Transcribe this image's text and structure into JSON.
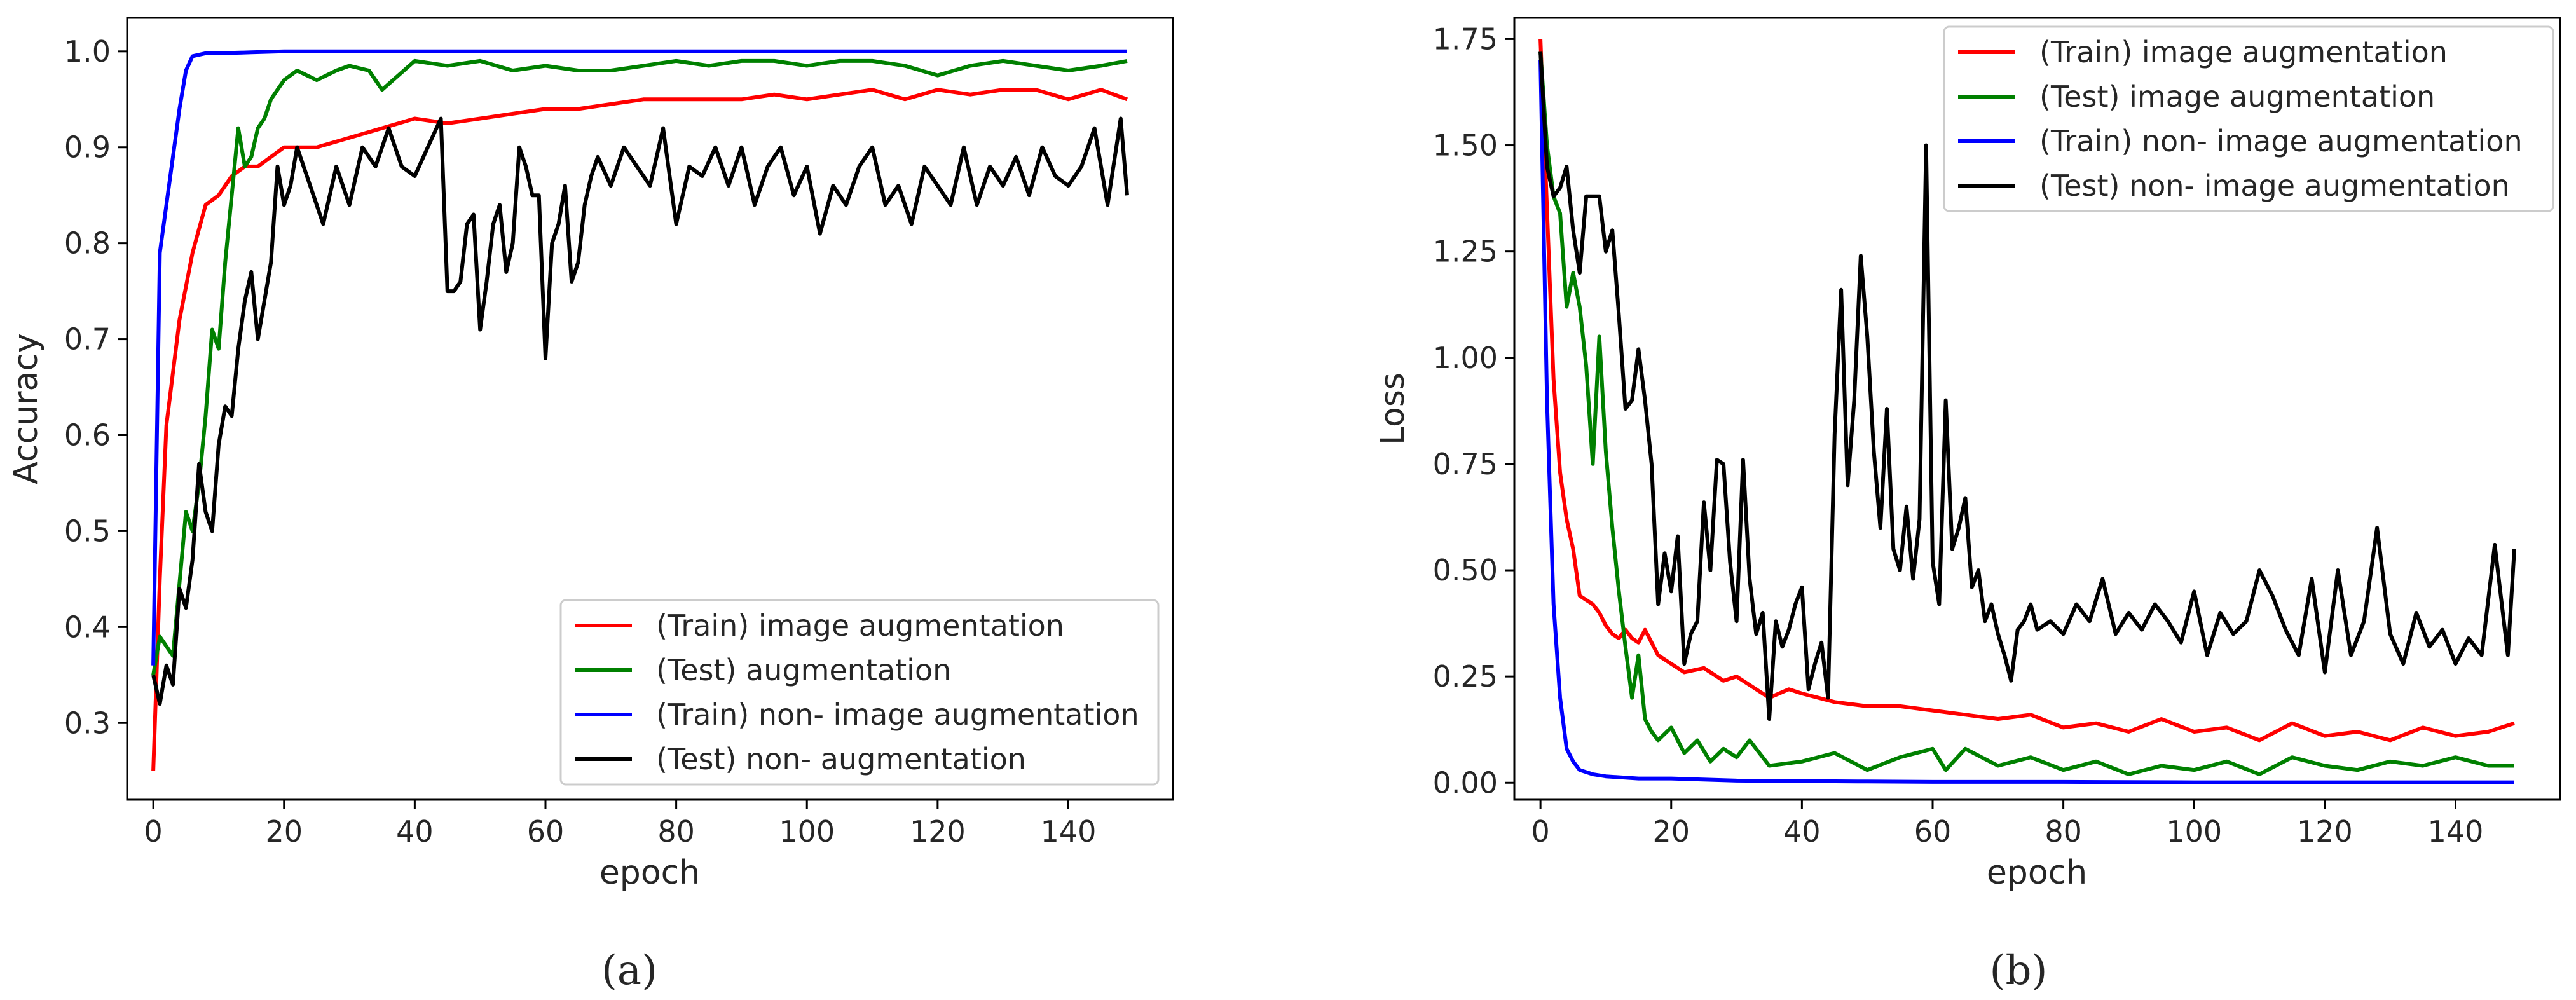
{
  "charts": [
    {
      "panel": "(a)",
      "xlabel": "epoch",
      "ylabel": "Accuracy",
      "legend_position": "lower-right",
      "legend": [
        "(Train) image augmentation",
        "(Test) augmentation",
        "(Train) non- image augmentation",
        "(Test) non- augmentation"
      ],
      "xticks": [
        "0",
        "20",
        "40",
        "60",
        "80",
        "100",
        "120",
        "140"
      ],
      "yticks": [
        "0.3",
        "0.4",
        "0.5",
        "0.6",
        "0.7",
        "0.8",
        "0.9",
        "1.0"
      ]
    },
    {
      "panel": "(b)",
      "xlabel": "epoch",
      "ylabel": "Loss",
      "legend_position": "upper-right",
      "legend": [
        "(Train) image augmentation",
        "(Test) image augmentation",
        "(Train) non- image augmentation",
        "(Test) non- image augmentation"
      ],
      "xticks": [
        "0",
        "20",
        "40",
        "60",
        "80",
        "100",
        "120",
        "140"
      ],
      "yticks": [
        "0.00",
        "0.25",
        "0.50",
        "0.75",
        "1.00",
        "1.25",
        "1.50",
        "1.75"
      ]
    }
  ],
  "chart_data": [
    {
      "type": "line",
      "xlabel": "epoch",
      "ylabel": "Accuracy",
      "xlim": [
        -4,
        156
      ],
      "ylim": [
        0.22,
        1.035
      ],
      "grid": false,
      "legend_position": "lower-right",
      "colors": [
        "#ff0000",
        "#008000",
        "#0000ff",
        "#000000"
      ],
      "series": [
        {
          "name": "(Train) image augmentation",
          "x": [
            0,
            1,
            2,
            4,
            6,
            8,
            10,
            12,
            14,
            16,
            18,
            20,
            25,
            30,
            35,
            40,
            45,
            50,
            55,
            60,
            65,
            70,
            75,
            80,
            85,
            90,
            95,
            100,
            105,
            110,
            115,
            120,
            125,
            130,
            135,
            140,
            145,
            149
          ],
          "y": [
            0.25,
            0.45,
            0.61,
            0.72,
            0.79,
            0.84,
            0.85,
            0.87,
            0.88,
            0.88,
            0.89,
            0.9,
            0.9,
            0.91,
            0.92,
            0.93,
            0.925,
            0.93,
            0.935,
            0.94,
            0.94,
            0.945,
            0.95,
            0.95,
            0.95,
            0.95,
            0.955,
            0.95,
            0.955,
            0.96,
            0.95,
            0.96,
            0.955,
            0.96,
            0.96,
            0.95,
            0.96,
            0.95
          ]
        },
        {
          "name": "(Test) augmentation",
          "x": [
            0,
            1,
            3,
            5,
            6,
            7,
            8,
            9,
            10,
            11,
            12,
            13,
            14,
            15,
            16,
            17,
            18,
            19,
            20,
            22,
            25,
            28,
            30,
            33,
            35,
            40,
            45,
            50,
            55,
            60,
            65,
            70,
            75,
            80,
            85,
            90,
            95,
            100,
            105,
            110,
            115,
            120,
            125,
            130,
            135,
            140,
            145,
            149
          ],
          "y": [
            0.35,
            0.39,
            0.37,
            0.52,
            0.5,
            0.55,
            0.62,
            0.71,
            0.69,
            0.78,
            0.85,
            0.92,
            0.88,
            0.89,
            0.92,
            0.93,
            0.95,
            0.96,
            0.97,
            0.98,
            0.97,
            0.98,
            0.985,
            0.98,
            0.96,
            0.99,
            0.985,
            0.99,
            0.98,
            0.985,
            0.98,
            0.98,
            0.985,
            0.99,
            0.985,
            0.99,
            0.99,
            0.985,
            0.99,
            0.99,
            0.985,
            0.975,
            0.985,
            0.99,
            0.985,
            0.98,
            0.985,
            0.99
          ]
        },
        {
          "name": "(Train) non- image augmentation",
          "x": [
            0,
            1,
            2,
            3,
            4,
            5,
            6,
            8,
            10,
            15,
            20,
            30,
            40,
            60,
            80,
            100,
            120,
            149
          ],
          "y": [
            0.36,
            0.79,
            0.84,
            0.89,
            0.94,
            0.98,
            0.995,
            0.998,
            0.998,
            0.999,
            1.0,
            1.0,
            1.0,
            1.0,
            1.0,
            1.0,
            1.0,
            1.0
          ]
        },
        {
          "name": "(Test) non- augmentation",
          "x": [
            0,
            1,
            2,
            3,
            4,
            5,
            6,
            7,
            8,
            9,
            10,
            11,
            12,
            13,
            14,
            15,
            16,
            17,
            18,
            19,
            20,
            21,
            22,
            24,
            26,
            28,
            30,
            32,
            34,
            36,
            38,
            40,
            42,
            44,
            45,
            46,
            47,
            48,
            49,
            50,
            51,
            52,
            53,
            54,
            55,
            56,
            57,
            58,
            59,
            60,
            61,
            62,
            63,
            64,
            65,
            66,
            67,
            68,
            70,
            72,
            74,
            76,
            78,
            80,
            82,
            84,
            86,
            88,
            90,
            92,
            94,
            96,
            98,
            100,
            102,
            104,
            106,
            108,
            110,
            112,
            114,
            116,
            118,
            120,
            122,
            124,
            126,
            128,
            130,
            132,
            134,
            136,
            138,
            140,
            142,
            144,
            146,
            148,
            149
          ],
          "y": [
            0.35,
            0.32,
            0.36,
            0.34,
            0.44,
            0.42,
            0.47,
            0.57,
            0.52,
            0.5,
            0.59,
            0.63,
            0.62,
            0.69,
            0.74,
            0.77,
            0.7,
            0.74,
            0.78,
            0.88,
            0.84,
            0.86,
            0.9,
            0.86,
            0.82,
            0.88,
            0.84,
            0.9,
            0.88,
            0.92,
            0.88,
            0.87,
            0.9,
            0.93,
            0.75,
            0.75,
            0.76,
            0.82,
            0.83,
            0.71,
            0.76,
            0.82,
            0.84,
            0.77,
            0.8,
            0.9,
            0.88,
            0.85,
            0.85,
            0.68,
            0.8,
            0.82,
            0.86,
            0.76,
            0.78,
            0.84,
            0.87,
            0.89,
            0.86,
            0.9,
            0.88,
            0.86,
            0.92,
            0.82,
            0.88,
            0.87,
            0.9,
            0.86,
            0.9,
            0.84,
            0.88,
            0.9,
            0.85,
            0.88,
            0.81,
            0.86,
            0.84,
            0.88,
            0.9,
            0.84,
            0.86,
            0.82,
            0.88,
            0.86,
            0.84,
            0.9,
            0.84,
            0.88,
            0.86,
            0.89,
            0.85,
            0.9,
            0.87,
            0.86,
            0.88,
            0.92,
            0.84,
            0.93,
            0.85
          ]
        }
      ]
    },
    {
      "type": "line",
      "xlabel": "epoch",
      "ylabel": "Loss",
      "xlim": [
        -4,
        156
      ],
      "ylim": [
        -0.04,
        1.8
      ],
      "grid": false,
      "legend_position": "upper-right",
      "colors": [
        "#ff0000",
        "#008000",
        "#0000ff",
        "#000000"
      ],
      "series": [
        {
          "name": "(Train) image augmentation",
          "x": [
            0,
            1,
            2,
            3,
            4,
            5,
            6,
            7,
            8,
            9,
            10,
            11,
            12,
            13,
            14,
            15,
            16,
            18,
            20,
            22,
            25,
            28,
            30,
            33,
            35,
            38,
            40,
            45,
            50,
            55,
            60,
            65,
            70,
            75,
            80,
            85,
            90,
            95,
            100,
            105,
            110,
            115,
            120,
            125,
            130,
            135,
            140,
            145,
            149
          ],
          "y": [
            1.75,
            1.35,
            0.95,
            0.73,
            0.62,
            0.55,
            0.44,
            0.43,
            0.42,
            0.4,
            0.37,
            0.35,
            0.34,
            0.36,
            0.34,
            0.33,
            0.36,
            0.3,
            0.28,
            0.26,
            0.27,
            0.24,
            0.25,
            0.22,
            0.2,
            0.22,
            0.21,
            0.19,
            0.18,
            0.18,
            0.17,
            0.16,
            0.15,
            0.16,
            0.13,
            0.14,
            0.12,
            0.15,
            0.12,
            0.13,
            0.1,
            0.14,
            0.11,
            0.12,
            0.1,
            0.13,
            0.11,
            0.12,
            0.14
          ]
        },
        {
          "name": "(Test) image augmentation",
          "x": [
            0,
            1,
            2,
            3,
            4,
            5,
            6,
            7,
            8,
            9,
            10,
            11,
            12,
            13,
            14,
            15,
            16,
            17,
            18,
            20,
            22,
            24,
            26,
            28,
            30,
            32,
            35,
            40,
            45,
            50,
            55,
            60,
            62,
            65,
            70,
            75,
            80,
            85,
            90,
            95,
            100,
            105,
            110,
            115,
            120,
            125,
            130,
            135,
            140,
            145,
            149
          ],
          "y": [
            1.72,
            1.5,
            1.38,
            1.34,
            1.12,
            1.2,
            1.12,
            0.98,
            0.75,
            1.05,
            0.78,
            0.6,
            0.45,
            0.32,
            0.2,
            0.3,
            0.15,
            0.12,
            0.1,
            0.13,
            0.07,
            0.1,
            0.05,
            0.08,
            0.06,
            0.1,
            0.04,
            0.05,
            0.07,
            0.03,
            0.06,
            0.08,
            0.03,
            0.08,
            0.04,
            0.06,
            0.03,
            0.05,
            0.02,
            0.04,
            0.03,
            0.05,
            0.02,
            0.06,
            0.04,
            0.03,
            0.05,
            0.04,
            0.06,
            0.04,
            0.04
          ]
        },
        {
          "name": "(Train) non- image augmentation",
          "x": [
            0,
            1,
            2,
            3,
            4,
            5,
            6,
            8,
            10,
            15,
            20,
            30,
            40,
            50,
            60,
            80,
            100,
            120,
            149
          ],
          "y": [
            1.7,
            0.9,
            0.42,
            0.2,
            0.08,
            0.05,
            0.03,
            0.02,
            0.015,
            0.01,
            0.01,
            0.005,
            0.004,
            0.003,
            0.002,
            0.002,
            0.001,
            0.001,
            0.001
          ]
        },
        {
          "name": "(Test) non- image augmentation",
          "x": [
            0,
            1,
            2,
            3,
            4,
            5,
            6,
            7,
            8,
            9,
            10,
            11,
            12,
            13,
            14,
            15,
            16,
            17,
            18,
            19,
            20,
            21,
            22,
            23,
            24,
            25,
            26,
            27,
            28,
            29,
            30,
            31,
            32,
            33,
            34,
            35,
            36,
            37,
            38,
            39,
            40,
            41,
            42,
            43,
            44,
            45,
            46,
            47,
            48,
            49,
            50,
            51,
            52,
            53,
            54,
            55,
            56,
            57,
            58,
            59,
            60,
            61,
            62,
            63,
            64,
            65,
            66,
            67,
            68,
            69,
            70,
            71,
            72,
            73,
            74,
            75,
            76,
            78,
            80,
            82,
            84,
            86,
            88,
            90,
            92,
            94,
            96,
            98,
            100,
            102,
            104,
            106,
            108,
            110,
            112,
            114,
            116,
            118,
            120,
            122,
            124,
            126,
            128,
            130,
            132,
            134,
            136,
            138,
            140,
            142,
            144,
            146,
            148,
            149
          ],
          "y": [
            1.72,
            1.45,
            1.38,
            1.4,
            1.45,
            1.3,
            1.2,
            1.38,
            1.38,
            1.38,
            1.25,
            1.3,
            1.1,
            0.88,
            0.9,
            1.02,
            0.9,
            0.75,
            0.42,
            0.54,
            0.45,
            0.58,
            0.28,
            0.35,
            0.38,
            0.66,
            0.5,
            0.76,
            0.75,
            0.52,
            0.38,
            0.76,
            0.48,
            0.35,
            0.4,
            0.15,
            0.38,
            0.32,
            0.36,
            0.42,
            0.46,
            0.22,
            0.28,
            0.33,
            0.2,
            0.82,
            1.16,
            0.7,
            0.9,
            1.24,
            1.05,
            0.78,
            0.6,
            0.88,
            0.55,
            0.5,
            0.65,
            0.48,
            0.62,
            1.5,
            0.52,
            0.42,
            0.9,
            0.55,
            0.6,
            0.67,
            0.46,
            0.5,
            0.38,
            0.42,
            0.35,
            0.3,
            0.24,
            0.36,
            0.38,
            0.42,
            0.36,
            0.38,
            0.35,
            0.42,
            0.38,
            0.48,
            0.35,
            0.4,
            0.36,
            0.42,
            0.38,
            0.33,
            0.45,
            0.3,
            0.4,
            0.35,
            0.38,
            0.5,
            0.44,
            0.36,
            0.3,
            0.48,
            0.26,
            0.5,
            0.3,
            0.38,
            0.6,
            0.35,
            0.28,
            0.4,
            0.32,
            0.36,
            0.28,
            0.34,
            0.3,
            0.56,
            0.3,
            0.55
          ]
        }
      ]
    }
  ]
}
